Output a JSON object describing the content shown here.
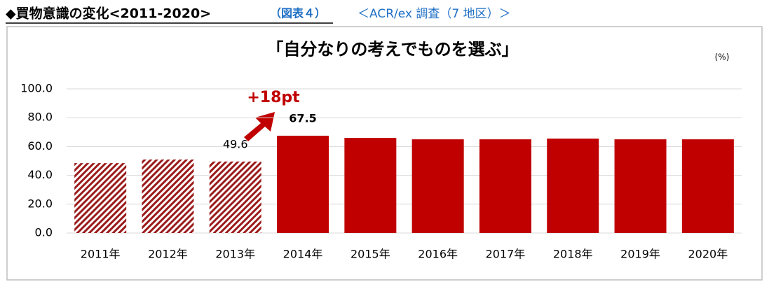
{
  "header": {
    "title": "◆買物意識の変化<2011-2020>",
    "figure": "（図表４）",
    "source": "＜ACR/ex 調査（7 地区）＞"
  },
  "chart_data": {
    "type": "bar",
    "title": "「自分なりの考えでものを選ぶ」",
    "unit": "(%)",
    "categories": [
      "2011年",
      "2012年",
      "2013年",
      "2014年",
      "2015年",
      "2016年",
      "2017年",
      "2018年",
      "2019年",
      "2020年"
    ],
    "values": [
      48.5,
      51.0,
      49.6,
      67.5,
      66.0,
      65.0,
      65.0,
      65.5,
      65.0,
      65.0
    ],
    "value_labels": [
      null,
      null,
      "49.6",
      "67.5",
      null,
      null,
      null,
      null,
      null,
      null
    ],
    "hatched": [
      true,
      true,
      true,
      false,
      false,
      false,
      false,
      false,
      false,
      false
    ],
    "color": "#c00000",
    "ylim": [
      0,
      100
    ],
    "yticks": [
      {
        "value": 0,
        "label": "0.0"
      },
      {
        "value": 20,
        "label": "20.0"
      },
      {
        "value": 40,
        "label": "40.0"
      },
      {
        "value": 60,
        "label": "60.0"
      },
      {
        "value": 80,
        "label": "80.0"
      },
      {
        "value": 100,
        "label": "100.0"
      }
    ],
    "grid": true,
    "annotation": "+18pt"
  }
}
